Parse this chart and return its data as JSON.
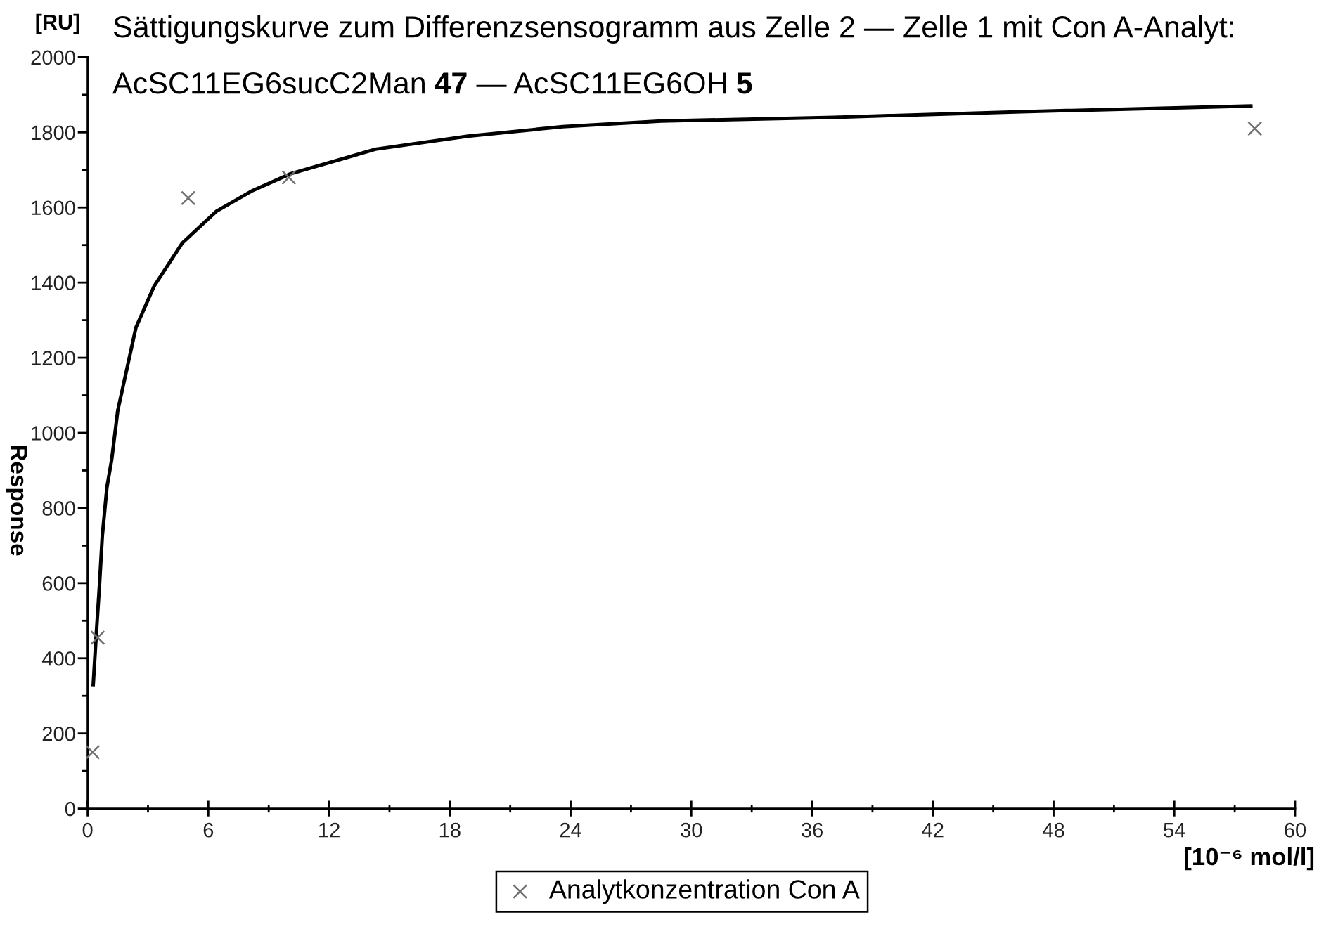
{
  "chart_data": {
    "type": "scatter",
    "title": "Sättigungskurve zum Differenzsensogramm aus Zelle 2 — Zelle 1 mit Con A-Analyt:",
    "subtitle": "AcSC11EG6sucC2Man 47 — AcSC11EG6OH 5",
    "xlabel": "[10⁻⁶ mol/l]",
    "ylabel": "Response",
    "annotations": [
      "[RU]"
    ],
    "series": [
      {
        "name": "Analytkonzentration Con A",
        "color": "#707070",
        "marker": "cross",
        "x": [
          0.25,
          0.5,
          5,
          10,
          58
        ],
        "values": [
          150,
          455,
          1625,
          1680,
          1810
        ]
      },
      {
        "type": "line",
        "color": "#000000",
        "marker": "none",
        "line_style": "solid",
        "x": [
          0.28,
          0.42,
          0.59,
          0.73,
          0.96,
          1.2,
          1.5,
          2.4,
          3.3,
          4.7,
          6.4,
          8.2,
          10.1,
          14.3,
          18.9,
          23.6,
          28.5,
          37.1,
          46.4,
          57.8
        ],
        "values": [
          330,
          455,
          595,
          725,
          855,
          930,
          1060,
          1280,
          1390,
          1505,
          1590,
          1645,
          1690,
          1755,
          1790,
          1815,
          1830,
          1840,
          1855,
          1870
        ]
      }
    ],
    "xlim": [
      0,
      60
    ],
    "xticks": [
      0,
      6,
      12,
      18,
      24,
      30,
      36,
      42,
      48,
      54,
      60
    ],
    "ylim": [
      0,
      2000
    ],
    "yticks": [
      0,
      200,
      400,
      600,
      800,
      1000,
      1200,
      1400,
      1600,
      1800,
      2000
    ],
    "grid": false,
    "legend": "bottom"
  }
}
